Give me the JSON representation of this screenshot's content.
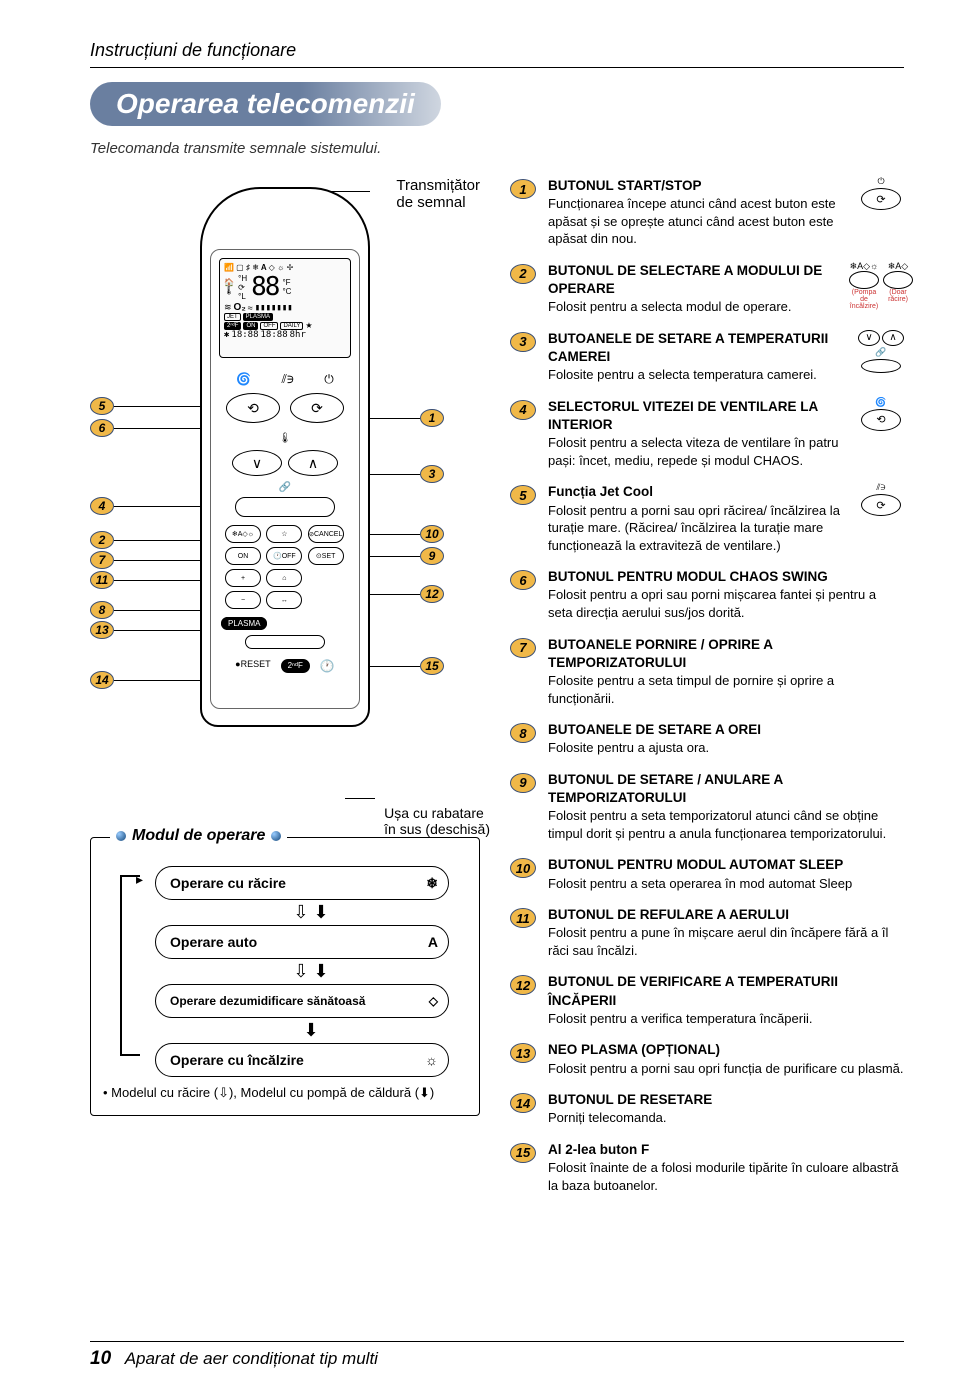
{
  "breadcrumb": "Instrucțiuni de funcționare",
  "title": "Operarea telecomenzii",
  "subtitle": "Telecomanda transmite semnale sistemului.",
  "labels": {
    "transmitter_l1": "Transmițător",
    "transmitter_l2": "de semnal",
    "door_l1": "Ușa cu rabatare",
    "door_l2": "în sus (deschisă)"
  },
  "lcd": {
    "temp": "88",
    "o2": "O₂",
    "jet": "JET",
    "plasma": "PLASMA",
    "on": "ON",
    "off": "OFF",
    "daily": "DAILY",
    "time1": "18:88",
    "time2": "18:88",
    "hr": "8hr",
    "f2": "2ⁿᵈF"
  },
  "remote_buttons": {
    "cancel": "CANCEL",
    "set": "SET",
    "on": "ON",
    "off": "OFF",
    "plasma": "PLASMA",
    "reset": "RESET",
    "f2": "2ⁿᵈF"
  },
  "mode": {
    "header": "Modul de operare",
    "rows": [
      {
        "label": "Operare cu răcire",
        "icon": "❄"
      },
      {
        "label": "Operare auto",
        "icon": "A"
      },
      {
        "label": "Operare dezumidificare sănătoasă",
        "icon": "◇"
      },
      {
        "label": "Operare cu încălzire",
        "icon": "☼"
      }
    ],
    "arrows": [
      "⇩ ⬇",
      "⇩ ⬇",
      "⬇"
    ],
    "footnote": "• Modelul cu răcire (⇩), Modelul cu pompă de căldură (⬇)"
  },
  "items": [
    {
      "n": "1",
      "title": "BUTONUL START/STOP",
      "desc": "Funcționarea începe atunci când acest buton este apăsat și se oprește atunci când acest buton este apăsat din nou.",
      "icon": "power"
    },
    {
      "n": "2",
      "title": "BUTONUL DE SELECTARE A MODULUI DE OPERARE",
      "desc": "Folosit pentru a selecta modul de operare.",
      "icon": "mode"
    },
    {
      "n": "3",
      "title": "BUTOANELE DE SETARE A TEMPERATURII CAMEREI",
      "desc": "Folosite pentru a selecta temperatura camerei.",
      "icon": "temp"
    },
    {
      "n": "4",
      "title": "SELECTORUL VITEZEI DE VENTILARE LA INTERIOR",
      "desc": "Folosit pentru a selecta viteza de ventilare în patru pași: încet, mediu, repede și modul CHAOS.",
      "icon": "fan"
    },
    {
      "n": "5",
      "title": "Funcția Jet Cool",
      "desc": "Folosit pentru a porni sau opri răcirea/ încălzirea la turație mare. (Răcirea/ încălzirea la turație mare funcționează la extraviteză de ventilare.)",
      "icon": "jet"
    },
    {
      "n": "6",
      "title": "BUTONUL PENTRU MODUL CHAOS SWING",
      "desc": "Folosit pentru a opri sau porni mișcarea fantei și pentru a seta direcția aerului sus/jos dorită.",
      "icon": null
    },
    {
      "n": "7",
      "title": "BUTOANELE PORNIRE / OPRIRE A TEMPORIZATORULUI",
      "desc": "Folosite pentru a seta timpul de pornire și oprire a funcționării.",
      "icon": null
    },
    {
      "n": "8",
      "title": "BUTOANELE DE SETARE A OREI",
      "desc": "Folosite pentru a ajusta ora.",
      "icon": null
    },
    {
      "n": "9",
      "title": "BUTONUL DE SETARE / ANULARE A TEMPORIZATORULUI",
      "desc": "Folosit pentru a seta temporizatorul atunci când se obține timpul dorit și pentru a anula funcționarea temporizatorului.",
      "icon": null
    },
    {
      "n": "10",
      "title": "BUTONUL PENTRU MODUL AUTOMAT SLEEP",
      "desc": "Folosit pentru a seta operarea în mod automat Sleep",
      "icon": null
    },
    {
      "n": "11",
      "title": "BUTONUL DE REFULARE A AERULUI",
      "desc": "Folosit pentru a pune în mișcare aerul din încăpere fără a îl răci sau încălzi.",
      "icon": null
    },
    {
      "n": "12",
      "title": "BUTONUL DE VERIFICARE A TEMPERATURII ÎNCĂPERII",
      "desc": "Folosit pentru a verifica temperatura încăperii.",
      "icon": null
    },
    {
      "n": "13",
      "title": "NEO PLASMA (OPȚIONAL)",
      "desc": "Folosit pentru a porni sau opri funcția de purificare cu plasmă.",
      "icon": null
    },
    {
      "n": "14",
      "title": "BUTONUL DE RESETARE",
      "desc": "Porniți telecomanda.",
      "icon": null
    },
    {
      "n": "15",
      "title": "Al 2-lea buton F",
      "desc": "Folosit înainte de a folosi modurile tipărite în culoare albastră la baza butoanelor.",
      "icon": null
    }
  ],
  "icon_anno": {
    "pump": "(Pompa de încălzire)",
    "cool": "(Doar răcire)"
  },
  "footer_num": "10",
  "footer_text": "Aparat de aer condiționat tip multi",
  "colors": {
    "bubble_fill": "#f0b848",
    "bubble_border": "#3b4f73",
    "title_grad_a": "#6a7fa0",
    "title_grad_b": "#cfd6e0"
  }
}
